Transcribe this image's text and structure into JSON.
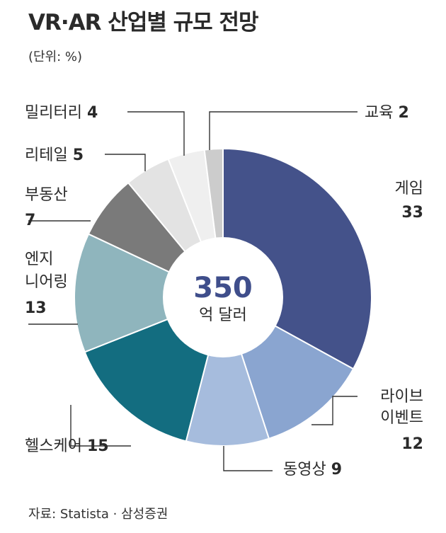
{
  "title": "VR·AR 산업별 규모 전망",
  "unit": "(단위: %)",
  "source": "자료: Statista · 삼성증권",
  "center": {
    "value": "350",
    "unit": "억 달러"
  },
  "chart_data": {
    "type": "pie",
    "title": "VR·AR 산업별 규모 전망",
    "unit": "%",
    "total": {
      "value": 350,
      "unit": "억 달러"
    },
    "slices": [
      {
        "label": "게임",
        "value": 33,
        "color": "#44528a"
      },
      {
        "label": "라이브 이벤트",
        "value": 12,
        "color": "#8aa5d0"
      },
      {
        "label": "동영상",
        "value": 9,
        "color": "#a6bcdd"
      },
      {
        "label": "헬스케어",
        "value": 15,
        "color": "#136d80"
      },
      {
        "label": "엔지니어링",
        "value": 13,
        "color": "#8fb5bd"
      },
      {
        "label": "부동산",
        "value": 7,
        "color": "#7a7a7a"
      },
      {
        "label": "리테일",
        "value": 5,
        "color": "#e3e3e3"
      },
      {
        "label": "밀리터리",
        "value": 4,
        "color": "#efefef"
      },
      {
        "label": "교육",
        "value": 2,
        "color": "#cccccc"
      }
    ]
  }
}
